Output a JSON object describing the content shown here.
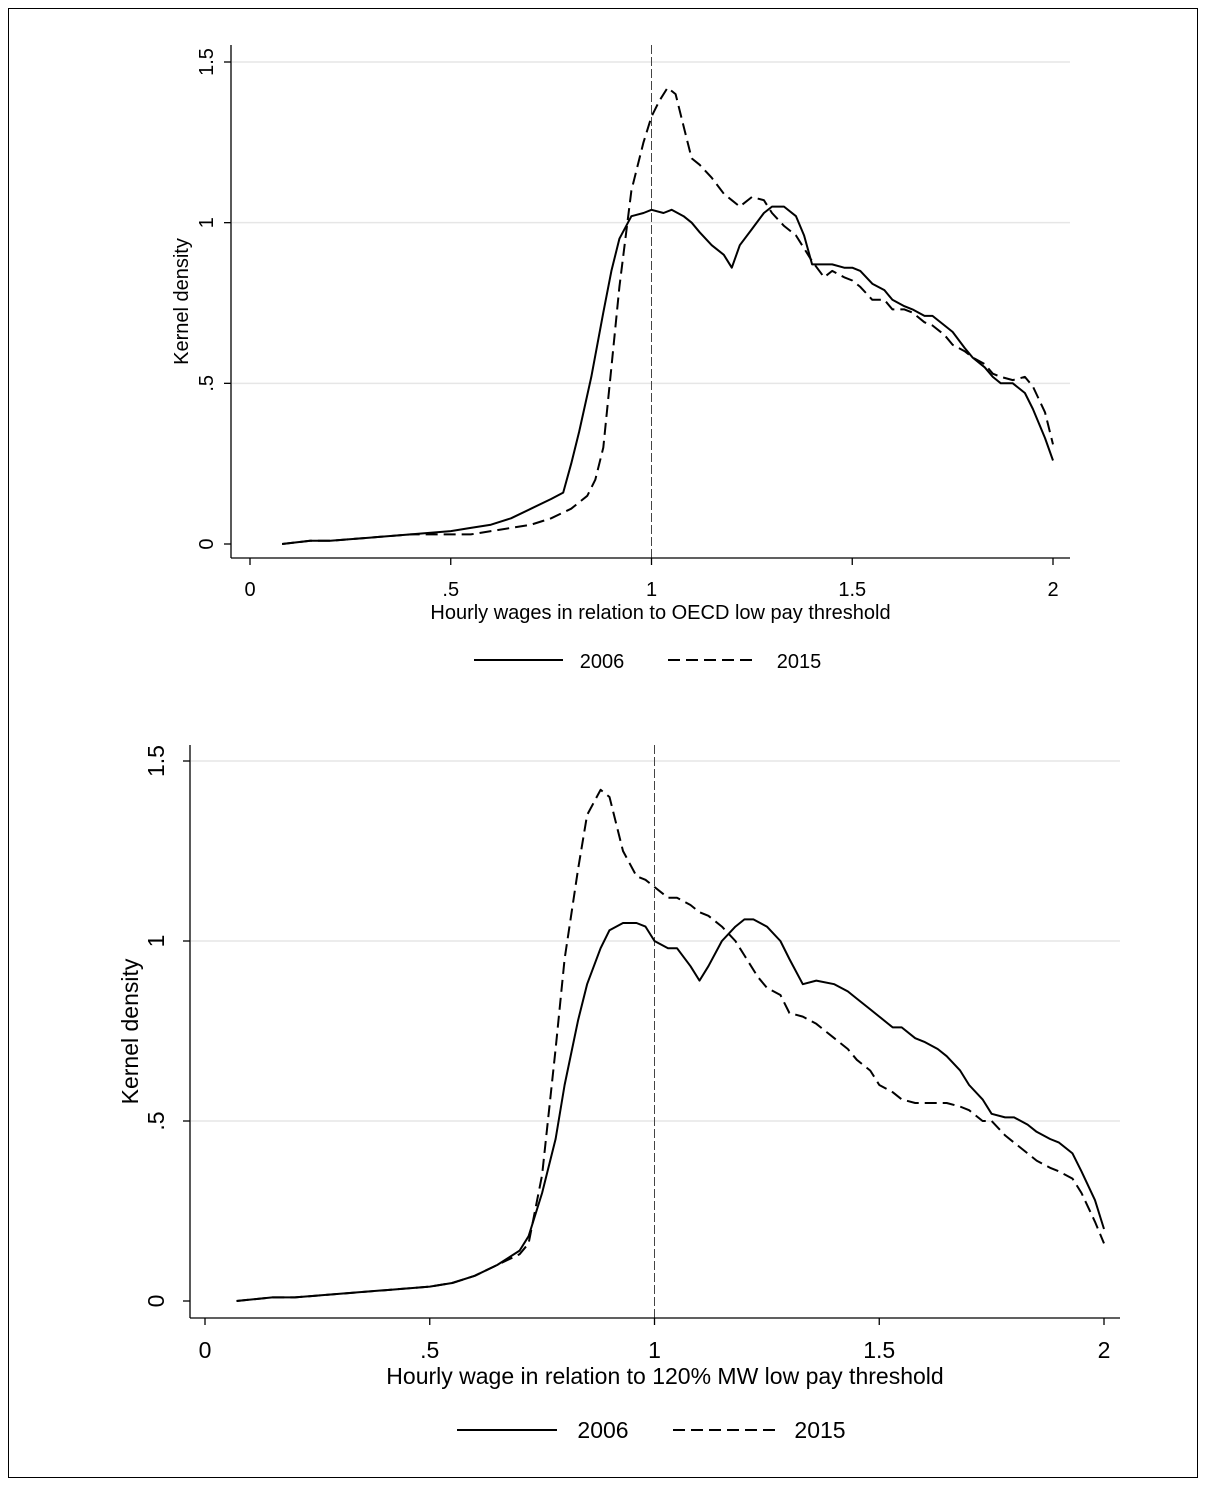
{
  "chart_data": [
    {
      "type": "line",
      "title": "",
      "xlabel": "Hourly wages in relation to OECD low pay threshold",
      "ylabel": "Kernel density",
      "xlim": [
        0,
        2
      ],
      "ylim": [
        0,
        1.5
      ],
      "xticks": [
        0,
        0.5,
        1,
        1.5,
        2
      ],
      "xtick_labels": [
        "0",
        ".5",
        "1",
        "1.5",
        "2"
      ],
      "yticks": [
        0,
        0.5,
        1,
        1.5
      ],
      "ytick_labels": [
        "0",
        ".5",
        "1",
        "1.5"
      ],
      "grid": true,
      "reference_line_x": 1,
      "legend": "bottom",
      "series": [
        {
          "name": "2006",
          "style": "solid",
          "x": [
            0.08,
            0.15,
            0.2,
            0.3,
            0.4,
            0.5,
            0.55,
            0.6,
            0.65,
            0.7,
            0.75,
            0.78,
            0.8,
            0.82,
            0.85,
            0.88,
            0.9,
            0.92,
            0.95,
            0.98,
            1.0,
            1.03,
            1.05,
            1.08,
            1.1,
            1.12,
            1.15,
            1.18,
            1.2,
            1.22,
            1.25,
            1.28,
            1.3,
            1.33,
            1.36,
            1.38,
            1.4,
            1.42,
            1.45,
            1.48,
            1.5,
            1.52,
            1.55,
            1.58,
            1.6,
            1.63,
            1.65,
            1.68,
            1.7,
            1.73,
            1.75,
            1.78,
            1.8,
            1.83,
            1.85,
            1.87,
            1.9,
            1.93,
            1.95,
            1.98,
            2.0
          ],
          "y": [
            0.0,
            0.01,
            0.01,
            0.02,
            0.03,
            0.04,
            0.05,
            0.06,
            0.08,
            0.11,
            0.14,
            0.16,
            0.25,
            0.35,
            0.52,
            0.72,
            0.85,
            0.95,
            1.02,
            1.03,
            1.04,
            1.03,
            1.04,
            1.02,
            1.0,
            0.97,
            0.93,
            0.9,
            0.86,
            0.93,
            0.98,
            1.03,
            1.05,
            1.05,
            1.02,
            0.96,
            0.87,
            0.87,
            0.87,
            0.86,
            0.86,
            0.85,
            0.81,
            0.79,
            0.76,
            0.74,
            0.73,
            0.71,
            0.71,
            0.68,
            0.66,
            0.61,
            0.58,
            0.55,
            0.52,
            0.5,
            0.5,
            0.47,
            0.42,
            0.33,
            0.26
          ]
        },
        {
          "name": "2015",
          "style": "dashed",
          "x": [
            0.08,
            0.15,
            0.2,
            0.3,
            0.4,
            0.5,
            0.55,
            0.6,
            0.65,
            0.7,
            0.75,
            0.8,
            0.84,
            0.86,
            0.88,
            0.9,
            0.92,
            0.95,
            0.98,
            1.0,
            1.02,
            1.04,
            1.06,
            1.08,
            1.09,
            1.1,
            1.12,
            1.15,
            1.18,
            1.2,
            1.22,
            1.25,
            1.28,
            1.3,
            1.33,
            1.36,
            1.4,
            1.43,
            1.45,
            1.48,
            1.5,
            1.52,
            1.55,
            1.58,
            1.6,
            1.63,
            1.65,
            1.68,
            1.7,
            1.73,
            1.75,
            1.78,
            1.8,
            1.83,
            1.85,
            1.87,
            1.9,
            1.93,
            1.95,
            1.98,
            2.0
          ],
          "y": [
            0.0,
            0.01,
            0.01,
            0.02,
            0.03,
            0.03,
            0.03,
            0.04,
            0.05,
            0.06,
            0.08,
            0.11,
            0.15,
            0.2,
            0.3,
            0.55,
            0.8,
            1.1,
            1.25,
            1.33,
            1.38,
            1.42,
            1.4,
            1.3,
            1.25,
            1.2,
            1.18,
            1.14,
            1.09,
            1.07,
            1.05,
            1.08,
            1.07,
            1.03,
            0.99,
            0.96,
            0.88,
            0.83,
            0.85,
            0.83,
            0.82,
            0.8,
            0.76,
            0.76,
            0.73,
            0.73,
            0.72,
            0.69,
            0.68,
            0.65,
            0.62,
            0.6,
            0.58,
            0.56,
            0.53,
            0.52,
            0.51,
            0.52,
            0.49,
            0.41,
            0.31
          ]
        }
      ]
    },
    {
      "type": "line",
      "title": "",
      "xlabel": "Hourly wage in relation to 120% MW low pay threshold",
      "ylabel": "Kernel density",
      "xlim": [
        0,
        2
      ],
      "ylim": [
        0,
        1.5
      ],
      "xticks": [
        0,
        0.5,
        1,
        1.5,
        2
      ],
      "xtick_labels": [
        "0",
        ".5",
        "1",
        "1.5",
        "2"
      ],
      "yticks": [
        0,
        0.5,
        1,
        1.5
      ],
      "ytick_labels": [
        "0",
        ".5",
        "1",
        "1.5"
      ],
      "grid": true,
      "reference_line_x": 1,
      "legend": "bottom",
      "series": [
        {
          "name": "2006",
          "style": "solid",
          "x": [
            0.07,
            0.15,
            0.2,
            0.3,
            0.4,
            0.5,
            0.55,
            0.6,
            0.65,
            0.7,
            0.72,
            0.75,
            0.78,
            0.8,
            0.83,
            0.85,
            0.88,
            0.9,
            0.93,
            0.96,
            0.98,
            1.0,
            1.03,
            1.05,
            1.08,
            1.1,
            1.12,
            1.15,
            1.18,
            1.2,
            1.22,
            1.25,
            1.28,
            1.3,
            1.33,
            1.36,
            1.4,
            1.43,
            1.45,
            1.48,
            1.5,
            1.53,
            1.55,
            1.58,
            1.6,
            1.63,
            1.65,
            1.68,
            1.7,
            1.73,
            1.75,
            1.78,
            1.8,
            1.83,
            1.85,
            1.88,
            1.9,
            1.93,
            1.95,
            1.98,
            2.0
          ],
          "y": [
            0.0,
            0.01,
            0.01,
            0.02,
            0.03,
            0.04,
            0.05,
            0.07,
            0.1,
            0.14,
            0.18,
            0.3,
            0.45,
            0.6,
            0.78,
            0.88,
            0.98,
            1.03,
            1.05,
            1.05,
            1.04,
            1.0,
            0.98,
            0.98,
            0.93,
            0.89,
            0.93,
            1.0,
            1.04,
            1.06,
            1.06,
            1.04,
            1.0,
            0.95,
            0.88,
            0.89,
            0.88,
            0.86,
            0.84,
            0.81,
            0.79,
            0.76,
            0.76,
            0.73,
            0.72,
            0.7,
            0.68,
            0.64,
            0.6,
            0.56,
            0.52,
            0.51,
            0.51,
            0.49,
            0.47,
            0.45,
            0.44,
            0.41,
            0.36,
            0.28,
            0.2
          ]
        },
        {
          "name": "2015",
          "style": "dashed",
          "x": [
            0.07,
            0.15,
            0.2,
            0.3,
            0.4,
            0.5,
            0.55,
            0.6,
            0.65,
            0.7,
            0.72,
            0.75,
            0.78,
            0.8,
            0.83,
            0.85,
            0.88,
            0.9,
            0.93,
            0.96,
            0.98,
            1.0,
            1.03,
            1.05,
            1.08,
            1.1,
            1.12,
            1.15,
            1.18,
            1.2,
            1.23,
            1.25,
            1.28,
            1.3,
            1.33,
            1.36,
            1.4,
            1.43,
            1.45,
            1.48,
            1.5,
            1.53,
            1.55,
            1.58,
            1.6,
            1.63,
            1.65,
            1.68,
            1.7,
            1.73,
            1.75,
            1.78,
            1.8,
            1.83,
            1.85,
            1.88,
            1.9,
            1.93,
            1.95,
            1.98,
            2.0
          ],
          "y": [
            0.0,
            0.01,
            0.01,
            0.02,
            0.03,
            0.04,
            0.05,
            0.07,
            0.1,
            0.13,
            0.16,
            0.35,
            0.7,
            0.95,
            1.2,
            1.35,
            1.42,
            1.4,
            1.25,
            1.18,
            1.17,
            1.15,
            1.12,
            1.12,
            1.1,
            1.08,
            1.07,
            1.04,
            1.0,
            0.96,
            0.9,
            0.87,
            0.85,
            0.8,
            0.79,
            0.77,
            0.73,
            0.7,
            0.67,
            0.64,
            0.6,
            0.58,
            0.56,
            0.55,
            0.55,
            0.55,
            0.55,
            0.54,
            0.53,
            0.5,
            0.5,
            0.46,
            0.44,
            0.41,
            0.39,
            0.37,
            0.36,
            0.34,
            0.3,
            0.22,
            0.16
          ]
        }
      ]
    }
  ]
}
